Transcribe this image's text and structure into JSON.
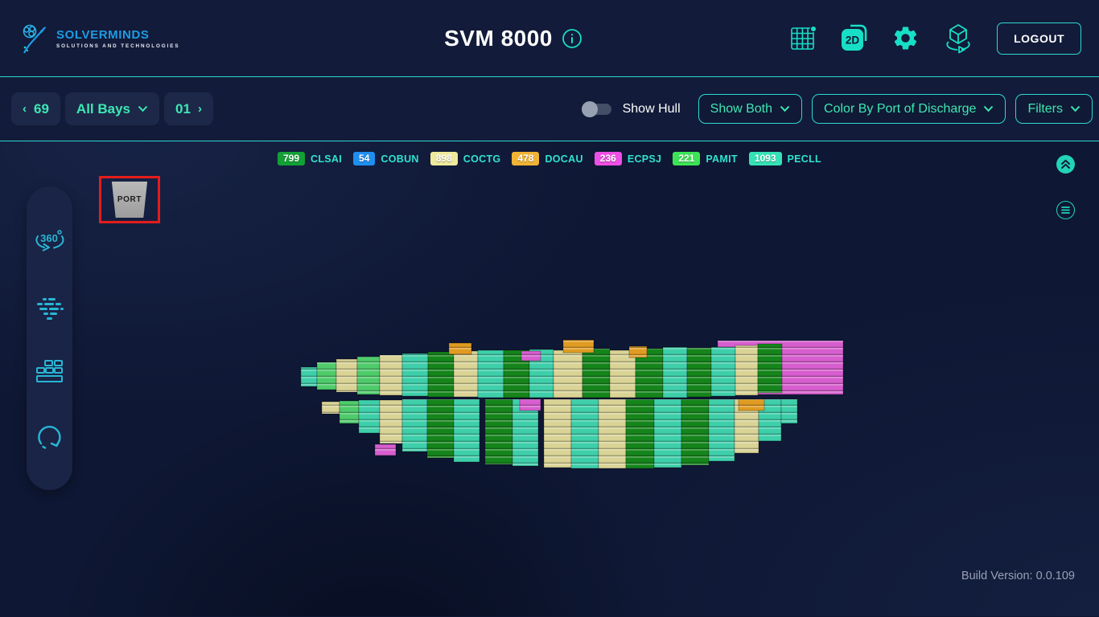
{
  "header": {
    "brand_name": "SOLVERMINDS",
    "brand_tagline": "SOLUTIONS AND TECHNOLOGIES",
    "title": "SVM 8000",
    "logout_label": "LOGOUT"
  },
  "toolbar": {
    "prev_bay": "69",
    "bays_label": "All Bays",
    "next_bay": "01",
    "show_hull_label": "Show Hull",
    "show_hull_enabled": false,
    "view_mode_label": "Show Both",
    "color_by_label": "Color By Port of Discharge",
    "filters_label": "Filters"
  },
  "legend": {
    "items": [
      {
        "count": "799",
        "label": "CLSAI",
        "color": "#12a035"
      },
      {
        "count": "54",
        "label": "COBUN",
        "color": "#1f8ef0"
      },
      {
        "count": "898",
        "label": "COCTG",
        "color": "#eeea9d"
      },
      {
        "count": "478",
        "label": "DOCAU",
        "color": "#f0b335"
      },
      {
        "count": "236",
        "label": "ECPSJ",
        "color": "#ef4fe4"
      },
      {
        "count": "221",
        "label": "PAMIT",
        "color": "#3ce455"
      },
      {
        "count": "1093",
        "label": "PECLL",
        "color": "#35e2b5"
      }
    ]
  },
  "viewport": {
    "port_marker_label": "PORT",
    "build_version": "Build Version: 0.0.109"
  },
  "colors": {
    "accent_cyan": "#2bd9d3",
    "accent_teal_text": "#3ce8b2",
    "header_icon": "#17dfc6",
    "sidebar_icon": "#28b6d6",
    "port_highlight_red": "#e51c1c"
  },
  "ship": {
    "palette": {
      "tl": "#3ecfaa",
      "dg": "#15851b",
      "kh": "#d9d395",
      "lg": "#4fcb6b",
      "or": "#e09b22",
      "mg": "#d75ecf"
    },
    "back": [
      [
        520,
        156,
        9,
        76,
        "mg"
      ]
    ],
    "deck": [
      [
        2,
        20,
        42,
        66,
        "tl"
      ],
      [
        22,
        24,
        36,
        70,
        "lg"
      ],
      [
        46,
        26,
        32,
        73,
        "kh"
      ],
      [
        72,
        28,
        29,
        76,
        "lg"
      ],
      [
        100,
        28,
        27,
        77,
        "kh"
      ],
      [
        128,
        32,
        25,
        78,
        "tl"
      ],
      [
        160,
        32,
        23,
        79,
        "dg"
      ],
      [
        192,
        30,
        22,
        79,
        "kh"
      ],
      [
        222,
        32,
        21,
        80,
        "tl"
      ],
      [
        254,
        32,
        21,
        80,
        "dg"
      ],
      [
        286,
        30,
        20,
        80,
        "tl"
      ],
      [
        316,
        36,
        21,
        80,
        "kh"
      ],
      [
        352,
        34,
        19,
        80,
        "dg"
      ],
      [
        386,
        32,
        21,
        80,
        "kh"
      ],
      [
        418,
        34,
        19,
        80,
        "dg"
      ],
      [
        452,
        30,
        17,
        80,
        "tl"
      ],
      [
        482,
        30,
        18,
        79,
        "dg"
      ],
      [
        512,
        30,
        17,
        78,
        "tl"
      ],
      [
        542,
        28,
        15,
        77,
        "kh"
      ],
      [
        570,
        30,
        13,
        74,
        "dg"
      ]
    ],
    "hold": [
      [
        28,
        22,
        85,
        100,
        "kh"
      ],
      [
        50,
        24,
        84,
        112,
        "lg"
      ],
      [
        74,
        26,
        83,
        124,
        "tl"
      ],
      [
        100,
        28,
        83,
        137,
        "kh"
      ],
      [
        128,
        31,
        82,
        147,
        "tl"
      ],
      [
        159,
        33,
        82,
        155,
        "dg"
      ],
      [
        192,
        32,
        82,
        160,
        "tl"
      ],
      [
        231,
        34,
        82,
        163,
        "dg"
      ],
      [
        265,
        32,
        82,
        165,
        "tl"
      ],
      [
        304,
        34,
        82,
        167,
        "kh"
      ],
      [
        338,
        34,
        82,
        168,
        "tl"
      ],
      [
        372,
        34,
        82,
        168,
        "kh"
      ],
      [
        406,
        35,
        82,
        168,
        "dg"
      ],
      [
        441,
        34,
        82,
        167,
        "tl"
      ],
      [
        475,
        34,
        82,
        164,
        "dg"
      ],
      [
        509,
        32,
        82,
        159,
        "tl"
      ],
      [
        541,
        30,
        82,
        149,
        "kh"
      ],
      [
        571,
        28,
        82,
        134,
        "tl"
      ],
      [
        599,
        20,
        82,
        112,
        "tl"
      ]
    ],
    "accents": [
      [
        186,
        28,
        12,
        26,
        "or"
      ],
      [
        328,
        38,
        8,
        24,
        "or"
      ],
      [
        410,
        22,
        16,
        30,
        "or"
      ],
      [
        546,
        32,
        82,
        96,
        "or"
      ],
      [
        276,
        24,
        22,
        34,
        "mg"
      ],
      [
        274,
        26,
        82,
        96,
        "mg"
      ],
      [
        94,
        26,
        138,
        152,
        "mg"
      ]
    ]
  }
}
